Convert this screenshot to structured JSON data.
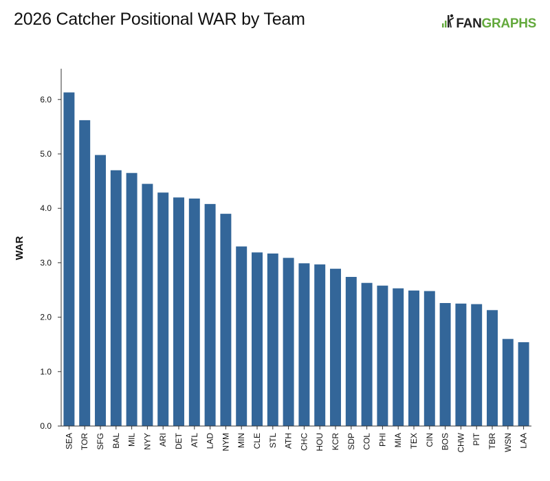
{
  "header": {
    "title": "2026 Catcher Positional WAR by Team",
    "logo_text_dark": "FAN",
    "logo_text_green": "GRAPHS"
  },
  "colors": {
    "bar": "#336699",
    "logo_green": "#63a93c",
    "axis": "#333333"
  },
  "chart_data": {
    "type": "bar",
    "title": "2026 Catcher Positional WAR by Team",
    "xlabel": "",
    "ylabel": "WAR",
    "ylim": [
      0,
      6.5
    ],
    "yticks": [
      "0.0",
      "1.0",
      "2.0",
      "3.0",
      "4.0",
      "5.0",
      "6.0"
    ],
    "grid": false,
    "categories": [
      "SEA",
      "TOR",
      "SFG",
      "BAL",
      "MIL",
      "NYY",
      "ARI",
      "DET",
      "ATL",
      "LAD",
      "NYM",
      "MIN",
      "CLE",
      "STL",
      "ATH",
      "CHC",
      "HOU",
      "KCR",
      "SDP",
      "COL",
      "PHI",
      "MIA",
      "TEX",
      "CIN",
      "BOS",
      "CHW",
      "PIT",
      "TBR",
      "WSN",
      "LAA"
    ],
    "values": [
      6.13,
      5.62,
      4.98,
      4.7,
      4.65,
      4.45,
      4.29,
      4.2,
      4.18,
      4.08,
      3.9,
      3.3,
      3.19,
      3.17,
      3.09,
      2.99,
      2.97,
      2.89,
      2.74,
      2.63,
      2.58,
      2.53,
      2.49,
      2.48,
      2.26,
      2.25,
      2.24,
      2.13,
      1.6,
      1.54
    ]
  }
}
